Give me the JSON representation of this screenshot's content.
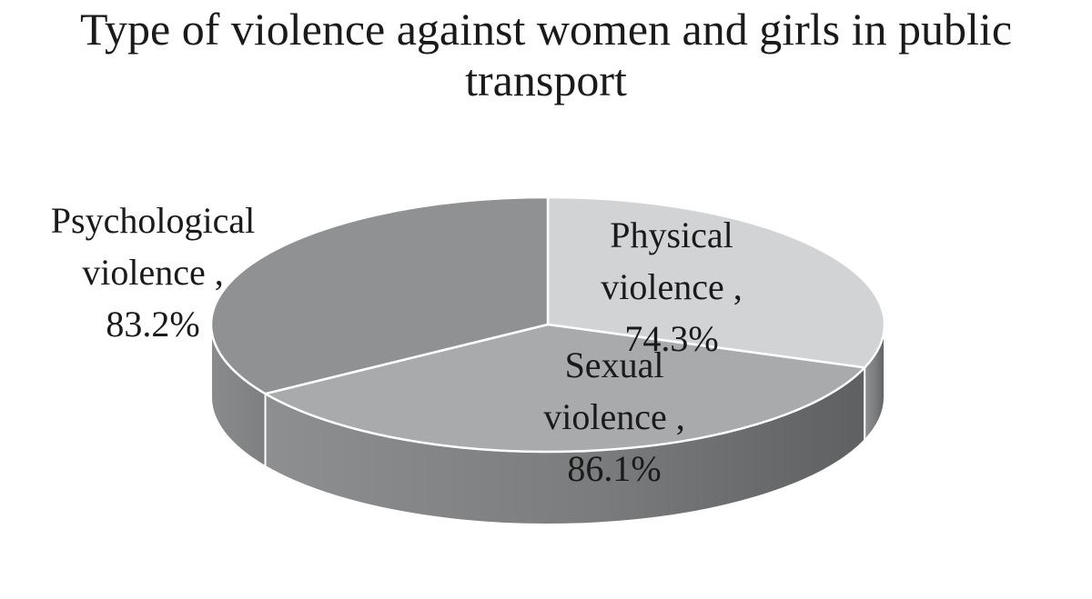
{
  "chart_data": {
    "type": "pie",
    "title_lines": [
      "Type of violence against women and girls in public",
      "transport"
    ],
    "slices": [
      {
        "name": "Physical violence",
        "label_lines": [
          "Physical",
          "violence ,",
          "74.3%"
        ],
        "value": 74.3,
        "color": "#d2d3d4"
      },
      {
        "name": "Sexual violence",
        "label_lines": [
          "Sexual",
          "violence ,",
          "86.1%"
        ],
        "value": 86.1,
        "color": "#a9aaab"
      },
      {
        "name": "Psychological violence",
        "label_lines": [
          "Psychological",
          "violence ,",
          "83.2%"
        ],
        "value": 83.2,
        "color": "#909192"
      }
    ],
    "legend": "none",
    "style": "3d-exploded-off"
  }
}
